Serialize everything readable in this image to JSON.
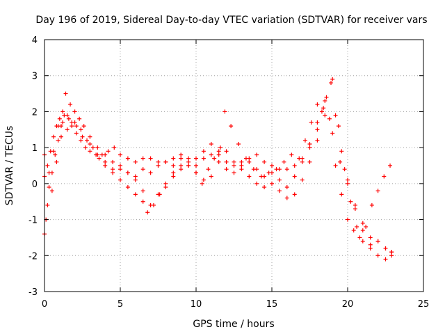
{
  "chart_data": {
    "type": "scatter",
    "title": "Day 196 of 2019, Sidereal Day-to-day VTEC variation (SDTVAR) for receiver vars",
    "xlabel": "GPS time / hours",
    "ylabel": "SDTVAR / TECUs",
    "xlim": [
      0,
      25
    ],
    "ylim": [
      -3,
      4
    ],
    "xticks": [
      "0",
      "5",
      "10",
      "15",
      "20",
      "25"
    ],
    "yticks": [
      "-3",
      "-2",
      "-1",
      "0",
      "1",
      "2",
      "3",
      "4"
    ],
    "grid": true,
    "marker": "plus",
    "series": [
      {
        "name": "track-1",
        "color": "#ff0000",
        "x": [
          0.0,
          0.2,
          0.4,
          0.6,
          0.8,
          1.0,
          1.2,
          1.5,
          1.8,
          2.1,
          2.4,
          2.7,
          3.0,
          3.4,
          3.8,
          4.2,
          4.6,
          5.0,
          5.5,
          6.0,
          6.5,
          7.0,
          7.5,
          8.0,
          8.5,
          9.0,
          9.5,
          10.0,
          10.5,
          11.0,
          11.5,
          12.0,
          12.5,
          13.0,
          13.5,
          14.0,
          14.5,
          15.0,
          15.5,
          16.0,
          16.5,
          17.0,
          17.5,
          18.0,
          18.5,
          19.0,
          19.5,
          20.0,
          20.5,
          21.0,
          21.5,
          22.0,
          22.5,
          22.9
        ],
        "y": [
          0.2,
          0.5,
          0.9,
          1.3,
          1.6,
          1.8,
          1.7,
          1.5,
          1.6,
          1.4,
          1.2,
          1.0,
          0.9,
          0.8,
          0.8,
          0.9,
          1.0,
          0.8,
          0.7,
          0.6,
          0.7,
          0.7,
          0.6,
          0.6,
          0.7,
          0.8,
          0.7,
          0.7,
          0.9,
          1.1,
          0.9,
          0.6,
          0.5,
          0.6,
          0.7,
          0.8,
          0.6,
          0.5,
          0.4,
          0.4,
          0.5,
          0.7,
          1.0,
          1.5,
          1.9,
          1.4,
          0.6,
          0.0,
          -0.6,
          -1.1,
          -1.5,
          -1.6,
          -1.8,
          -1.9
        ]
      },
      {
        "name": "track-2",
        "color": "#ff0000",
        "x": [
          0.0,
          0.3,
          0.6,
          0.9,
          1.2,
          1.5,
          1.8,
          2.1,
          2.5,
          3.0,
          3.5,
          4.0,
          4.5,
          5.0,
          5.5,
          6.0,
          6.5,
          7.0,
          7.5,
          8.0,
          8.5,
          9.0,
          9.5,
          10.0,
          10.5,
          11.0,
          11.5,
          11.9,
          12.3,
          12.8,
          13.3,
          13.8,
          14.3,
          14.8,
          15.3,
          15.8,
          16.3,
          16.8,
          17.2,
          17.6,
          18.0,
          18.4,
          18.8,
          19.2,
          19.6,
          20.0,
          20.4,
          20.8,
          21.2,
          21.6,
          22.0,
          22.4,
          22.8
        ],
        "y": [
          0.8,
          0.3,
          0.9,
          1.6,
          2.0,
          1.9,
          1.7,
          1.6,
          1.3,
          1.1,
          0.8,
          0.6,
          0.4,
          0.5,
          0.3,
          0.1,
          -0.2,
          -0.6,
          -0.3,
          0.0,
          0.3,
          0.5,
          0.5,
          0.3,
          0.1,
          0.2,
          0.8,
          2.0,
          1.6,
          1.1,
          0.7,
          0.4,
          0.2,
          0.3,
          0.4,
          0.6,
          0.8,
          0.7,
          1.2,
          1.7,
          2.2,
          2.1,
          1.8,
          0.5,
          -0.3,
          -1.0,
          -1.3,
          -1.5,
          -1.2,
          -0.6,
          -0.2,
          0.2,
          0.5
        ]
      },
      {
        "name": "track-3",
        "color": "#ff0000",
        "x": [
          0.0,
          0.1,
          0.2,
          0.3,
          0.5,
          0.7,
          0.9,
          1.1,
          1.3,
          1.6,
          2.0,
          2.4,
          2.8,
          3.2,
          3.6,
          4.0,
          4.5,
          5.0,
          5.5,
          6.0,
          6.5,
          6.8,
          7.2,
          7.6,
          8.0,
          8.5,
          9.0,
          9.5,
          10.0,
          10.4,
          10.8,
          11.2,
          11.6,
          12.0,
          12.5,
          13.0,
          13.5,
          14.0,
          14.5,
          15.0,
          15.5,
          16.0,
          16.5,
          17.0,
          17.5,
          18.0,
          18.5,
          19.0,
          19.4,
          19.8,
          20.2,
          20.6,
          21.0,
          21.5,
          22.0,
          22.5,
          22.9
        ],
        "y": [
          -1.4,
          -1.0,
          -0.6,
          -0.1,
          0.3,
          0.8,
          1.2,
          1.6,
          1.9,
          1.8,
          1.7,
          1.5,
          1.2,
          1.0,
          0.7,
          0.5,
          0.3,
          0.1,
          -0.1,
          -0.3,
          -0.5,
          -0.8,
          -0.6,
          -0.3,
          -0.1,
          0.2,
          0.4,
          0.5,
          0.3,
          0.0,
          0.4,
          0.7,
          1.0,
          0.9,
          0.6,
          0.4,
          0.2,
          0.0,
          -0.1,
          0.0,
          -0.2,
          -0.4,
          -0.3,
          0.1,
          0.6,
          1.2,
          2.3,
          2.9,
          1.6,
          0.4,
          -0.5,
          -1.2,
          -1.6,
          -1.8,
          -2.0,
          -2.1,
          -1.9
        ]
      },
      {
        "name": "track-4",
        "color": "#ff0000",
        "x": [
          0.5,
          0.8,
          1.1,
          1.4,
          1.7,
          2.0,
          2.3,
          2.6,
          3.0,
          3.5,
          4.0,
          4.5,
          5.0,
          5.5,
          6.0,
          6.5,
          7.0,
          7.5,
          8.0,
          8.5,
          9.0,
          9.5,
          10.0,
          10.5,
          11.0,
          11.5,
          12.0,
          12.5,
          13.0,
          13.5,
          14.0,
          14.5,
          15.0,
          15.5,
          16.0,
          16.5,
          17.0,
          17.5,
          18.0,
          18.3,
          18.6,
          18.9,
          19.2,
          19.6,
          20.0,
          20.5,
          21.0,
          21.5,
          22.0,
          22.5,
          22.9
        ],
        "y": [
          -0.2,
          0.6,
          1.3,
          2.5,
          2.2,
          2.0,
          1.8,
          1.6,
          1.3,
          1.0,
          0.8,
          0.6,
          0.4,
          0.3,
          0.2,
          0.4,
          0.3,
          0.5,
          0.6,
          0.5,
          0.7,
          0.6,
          0.5,
          0.7,
          0.8,
          0.6,
          0.4,
          0.3,
          0.5,
          0.6,
          0.4,
          0.2,
          0.3,
          0.1,
          -0.1,
          0.2,
          0.6,
          1.1,
          1.7,
          2.0,
          2.4,
          2.8,
          1.9,
          0.9,
          0.1,
          -0.7,
          -1.3,
          -1.7,
          -1.6,
          -1.8,
          -2.0
        ]
      }
    ]
  }
}
